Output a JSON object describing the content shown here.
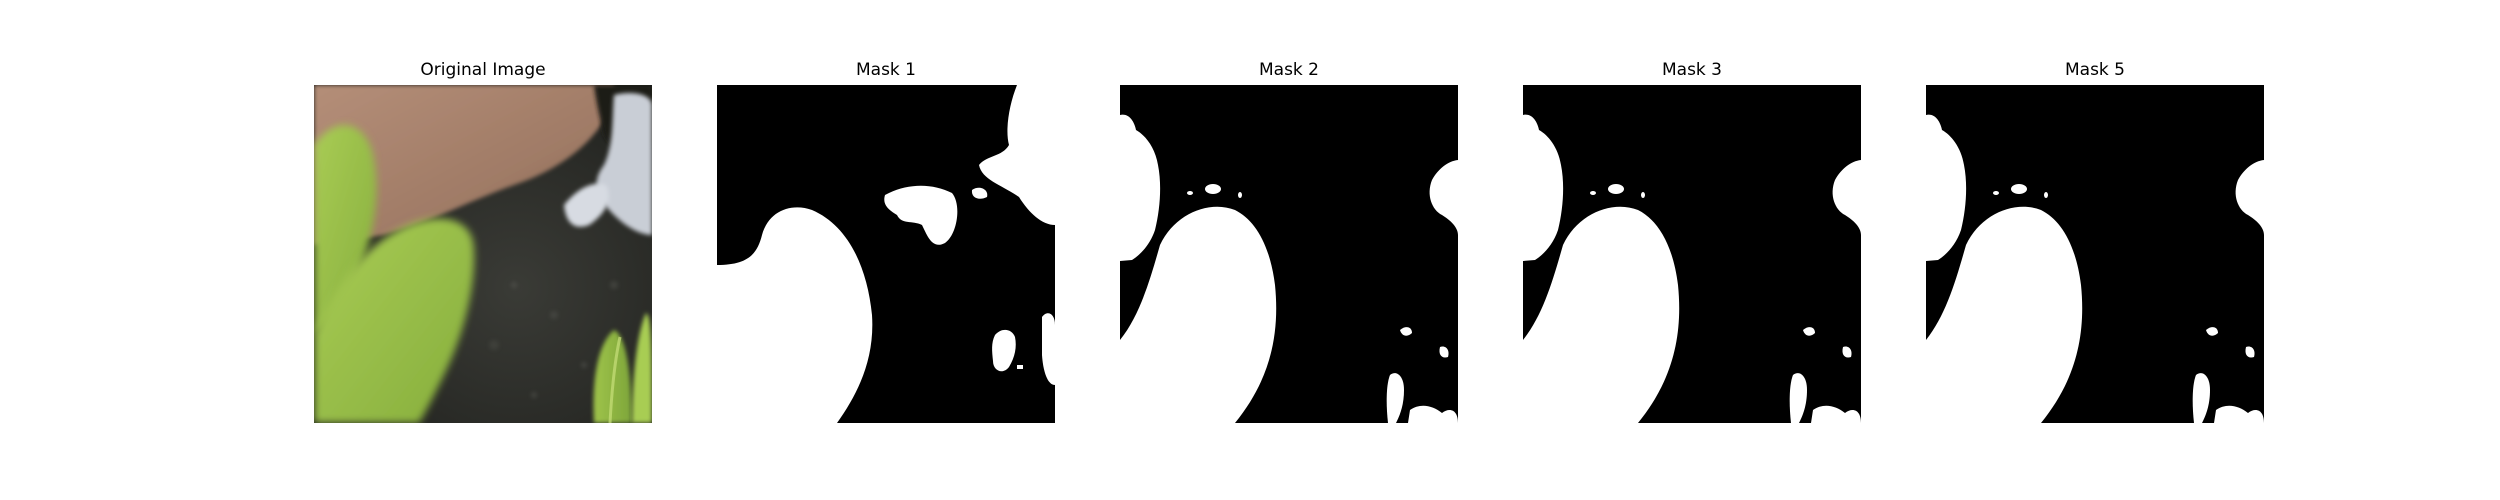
{
  "figure": {
    "panels": [
      {
        "title": "Original Image",
        "kind": "photo"
      },
      {
        "title": "Mask 1",
        "kind": "mask"
      },
      {
        "title": "Mask 2",
        "kind": "mask"
      },
      {
        "title": "Mask 3",
        "kind": "mask"
      },
      {
        "title": "Mask 5",
        "kind": "mask"
      }
    ]
  },
  "colors": {
    "mask_foreground": "#ffffff",
    "mask_background": "#000000",
    "leaf_green": "#9bc24a",
    "skin_tone": "#b08a74",
    "dark_background": "#2b2c28"
  }
}
